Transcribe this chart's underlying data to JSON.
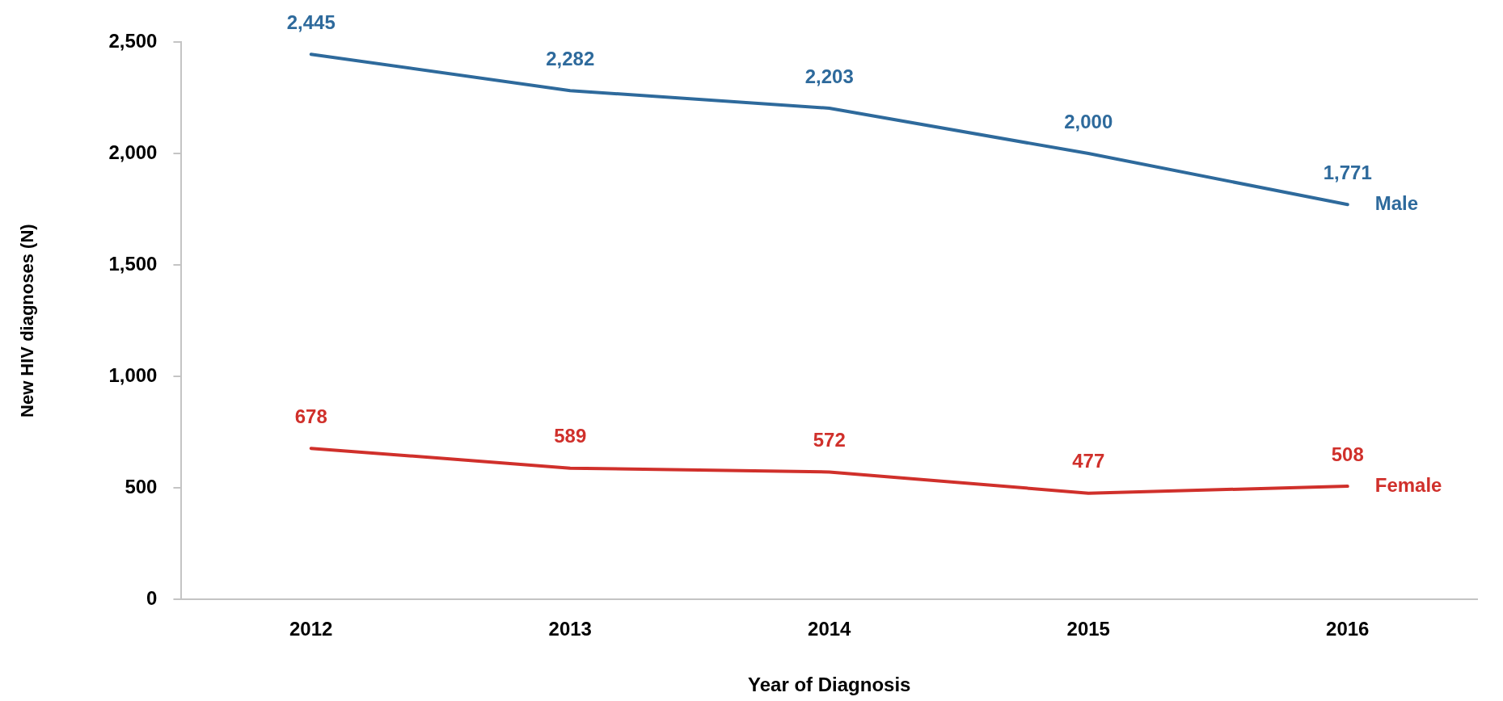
{
  "chart_data": {
    "type": "line",
    "xlabel": "Year of Diagnosis",
    "ylabel": "New HIV diagnoses (N)",
    "categories": [
      "2012",
      "2013",
      "2014",
      "2015",
      "2016"
    ],
    "series": [
      {
        "name": "Male",
        "color": "#2e6a9c",
        "values": [
          2445,
          2282,
          2203,
          2000,
          1771
        ],
        "value_labels": [
          "2,445",
          "2,282",
          "2,203",
          "2,000",
          "1,771"
        ]
      },
      {
        "name": "Female",
        "color": "#d0302b",
        "values": [
          678,
          589,
          572,
          477,
          508
        ],
        "value_labels": [
          "678",
          "589",
          "572",
          "477",
          "508"
        ]
      }
    ],
    "ylim": [
      0,
      2500
    ],
    "yticks": [
      0,
      500,
      {
        "value": 1000,
        "label": "1,000"
      },
      {
        "value": 1500,
        "label": "1,500"
      },
      {
        "value": 2000,
        "label": "2,000"
      },
      {
        "value": 2500,
        "label": "2,500"
      }
    ],
    "marker": "none",
    "line_style": "solid"
  }
}
